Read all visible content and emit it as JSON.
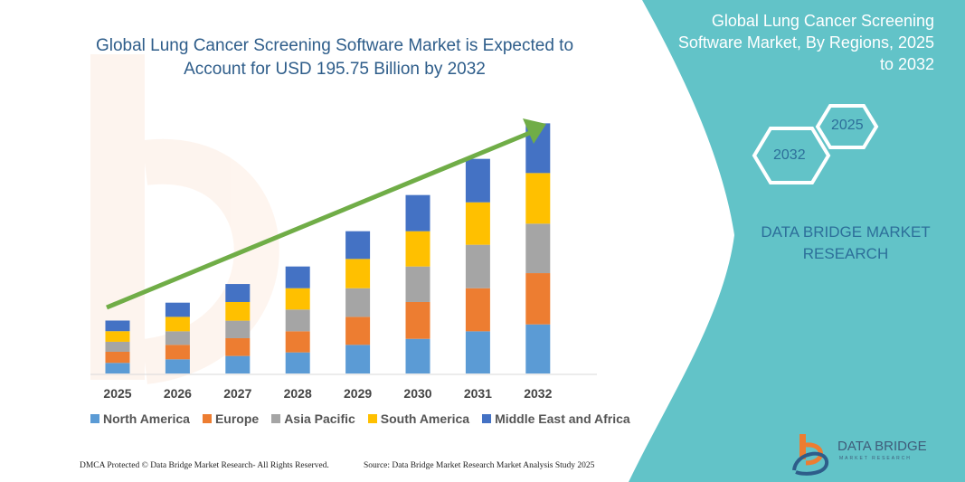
{
  "title": "Global Lung Cancer Screening Software Market is Expected to Account for USD 195.75 Billion by 2032",
  "side_panel": {
    "title": "Global Lung Cancer Screening Software Market, By Regions, 2025 to 2032",
    "hex_start": "2025",
    "hex_end": "2032",
    "brand": "DATA BRIDGE MARKET RESEARCH",
    "color": "#62c3c8"
  },
  "footer": {
    "copyright": "DMCA Protected © Data Bridge Market Research- All Rights Reserved.",
    "source": "Source: Data Bridge Market Research  Market Analysis Study 2025",
    "logo_text": "DATA BRIDGE",
    "logo_subtext": "MARKET RESEARCH"
  },
  "chart_data": {
    "type": "bar",
    "stacked": true,
    "title": "Global Lung Cancer Screening Software Market is Expected to Account for USD 195.75 Billion by 2032",
    "xlabel": "",
    "ylabel": "",
    "grid": false,
    "legend_position": "bottom",
    "trend_arrow": true,
    "categories": [
      "2025",
      "2026",
      "2027",
      "2028",
      "2029",
      "2030",
      "2031",
      "2032"
    ],
    "series": [
      {
        "name": "North America",
        "color": "#5b9bd5",
        "values": [
          8.3,
          11.1,
          13.7,
          16.5,
          22.4,
          27.1,
          33.0,
          38.4
        ]
      },
      {
        "name": "Europe",
        "color": "#ed7d31",
        "values": [
          8.7,
          11.3,
          13.9,
          16.5,
          21.9,
          28.8,
          33.7,
          40.1
        ]
      },
      {
        "name": "Asia Pacific",
        "color": "#a5a5a5",
        "values": [
          7.8,
          10.6,
          13.7,
          17.0,
          22.4,
          27.8,
          34.0,
          38.7
        ]
      },
      {
        "name": "South America",
        "color": "#ffc000",
        "values": [
          8.3,
          11.3,
          14.6,
          16.7,
          22.9,
          27.6,
          33.2,
          39.6
        ]
      },
      {
        "name": "Middle East and Africa",
        "color": "#4472c4",
        "values": [
          8.3,
          11.1,
          14.1,
          17.0,
          21.7,
          28.3,
          34.0,
          38.9
        ]
      }
    ],
    "arrow_color": "#70ad47"
  }
}
